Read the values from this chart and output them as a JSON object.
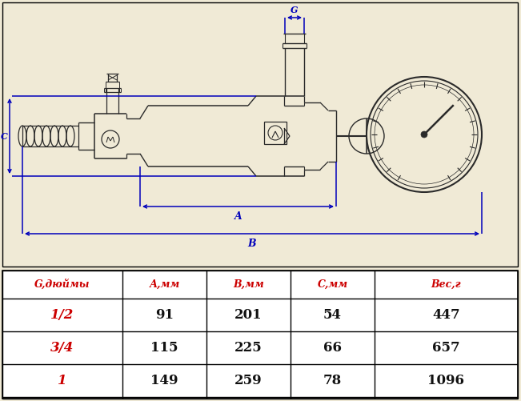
{
  "bg_color": "#f0ead6",
  "drawing_color": "#2a2a2a",
  "dim_color": "#0000bb",
  "table_header_color": "#cc0000",
  "table_data_color": "#111111",
  "table_g_color": "#cc0000",
  "table_bg": "#ffffff",
  "table_border_color": "#000000",
  "headers": [
    "G,дюймы",
    "А,мм",
    "В,мм",
    "С,мм",
    "Вес,г"
  ],
  "col1": [
    "1/2",
    "3/4",
    "1"
  ],
  "col2": [
    "91",
    "115",
    "149"
  ],
  "col3": [
    "201",
    "225",
    "259"
  ],
  "col4": [
    "54",
    "66",
    "78"
  ],
  "col5": [
    "447",
    "657",
    "1096"
  ],
  "label_G": "G",
  "label_A": "A",
  "label_B": "B",
  "label_C": "С"
}
